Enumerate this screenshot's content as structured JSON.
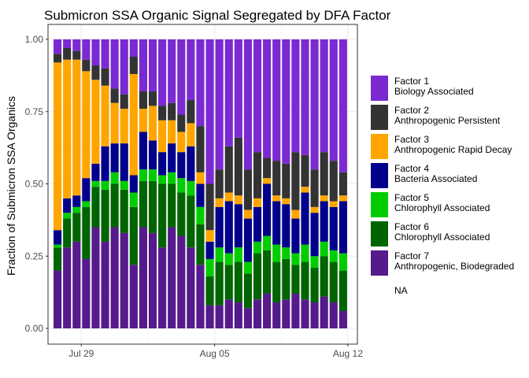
{
  "chart_data": {
    "type": "bar",
    "stacked": true,
    "title": "Submicron SSA Organic Signal Segregated by DFA Factor",
    "xlabel": "",
    "ylabel": "Fraction of Submicron SSA Organics",
    "ylim": [
      0,
      1.05
    ],
    "yticks": [
      0.0,
      0.25,
      0.5,
      0.75,
      1.0
    ],
    "ytick_labels": [
      "0.00",
      "0.25",
      "0.50",
      "0.75",
      "1.00"
    ],
    "xlim_days": [
      -0.75,
      15.5
    ],
    "xticks": [
      {
        "label": "Jul 29",
        "day": 1
      },
      {
        "label": "Aug 05",
        "day": 8
      },
      {
        "label": "Aug 12",
        "day": 15
      }
    ],
    "bar_width_days": 0.42,
    "series": [
      {
        "name": "Factor 1",
        "label_line1": "Factor 1",
        "label_line2": "Biology Associated",
        "color": "#7B2AD2"
      },
      {
        "name": "Factor 2",
        "label_line1": "Factor 2",
        "label_line2": "Anthropogenic Persistent",
        "color": "#333333"
      },
      {
        "name": "Factor 3",
        "label_line1": "Factor 3",
        "label_line2": "Anthropogenic Rapid Decay",
        "color": "#FFA500"
      },
      {
        "name": "Factor 4",
        "label_line1": "Factor 4",
        "label_line2": "Bacteria Associated",
        "color": "#00008B"
      },
      {
        "name": "Factor 5",
        "label_line1": "Factor 5",
        "label_line2": "Chlorophyll Associated",
        "color": "#00CD00"
      },
      {
        "name": "Factor 6",
        "label_line1": "Factor 6",
        "label_line2": "Chlorophyll Associated",
        "color": "#006400"
      },
      {
        "name": "Factor 7",
        "label_line1": "Factor 7",
        "label_line2": "Anthropogenic, Biodegraded",
        "color": "#551A8B"
      }
    ],
    "na_label": "NA",
    "bars": [
      {
        "day": -0.25,
        "f7": 0.2,
        "f6": 0.08,
        "f5": 0.01,
        "f4": 0.05,
        "f3": 0.58,
        "f2": 0.03,
        "f1": 0.05
      },
      {
        "day": 0.25,
        "f7": 0.28,
        "f6": 0.1,
        "f5": 0.02,
        "f4": 0.05,
        "f3": 0.48,
        "f2": 0.04,
        "f1": 0.03
      },
      {
        "day": 0.75,
        "f7": 0.3,
        "f6": 0.1,
        "f5": 0.02,
        "f4": 0.04,
        "f3": 0.47,
        "f2": 0.03,
        "f1": 0.04
      },
      {
        "day": 1.25,
        "f7": 0.24,
        "f6": 0.18,
        "f5": 0.02,
        "f4": 0.08,
        "f3": 0.37,
        "f2": 0.04,
        "f1": 0.07
      },
      {
        "day": 1.75,
        "f7": 0.35,
        "f6": 0.14,
        "f5": 0.02,
        "f4": 0.06,
        "f3": 0.29,
        "f2": 0.05,
        "f1": 0.09
      },
      {
        "day": 2.25,
        "f7": 0.3,
        "f6": 0.18,
        "f5": 0.03,
        "f4": 0.12,
        "f3": 0.21,
        "f2": 0.06,
        "f1": 0.1
      },
      {
        "day": 2.75,
        "f7": 0.35,
        "f6": 0.15,
        "f5": 0.04,
        "f4": 0.1,
        "f3": 0.14,
        "f2": 0.05,
        "f1": 0.17
      },
      {
        "day": 3.25,
        "f7": 0.33,
        "f6": 0.15,
        "f5": 0.03,
        "f4": 0.13,
        "f3": 0.12,
        "f2": 0.05,
        "f1": 0.19
      },
      {
        "day": 3.75,
        "f7": 0.22,
        "f6": 0.2,
        "f5": 0.05,
        "f4": 0.06,
        "f3": 0.35,
        "f2": 0.06,
        "f1": 0.06
      },
      {
        "day": 4.25,
        "f7": 0.35,
        "f6": 0.16,
        "f5": 0.04,
        "f4": 0.13,
        "f3": 0.08,
        "f2": 0.06,
        "f1": 0.18
      },
      {
        "day": 4.75,
        "f7": 0.33,
        "f6": 0.18,
        "f5": 0.04,
        "f4": 0.1,
        "f3": 0.12,
        "f2": 0.05,
        "f1": 0.18
      },
      {
        "day": 5.25,
        "f7": 0.28,
        "f6": 0.22,
        "f5": 0.03,
        "f4": 0.08,
        "f3": 0.11,
        "f2": 0.05,
        "f1": 0.23
      },
      {
        "day": 5.75,
        "f7": 0.35,
        "f6": 0.15,
        "f5": 0.04,
        "f4": 0.1,
        "f3": 0.08,
        "f2": 0.06,
        "f1": 0.22
      },
      {
        "day": 6.25,
        "f7": 0.32,
        "f6": 0.15,
        "f5": 0.05,
        "f4": 0.09,
        "f3": 0.07,
        "f2": 0.06,
        "f1": 0.26
      },
      {
        "day": 6.75,
        "f7": 0.28,
        "f6": 0.18,
        "f5": 0.05,
        "f4": 0.12,
        "f3": 0.08,
        "f2": 0.08,
        "f1": 0.21
      },
      {
        "day": 7.25,
        "f7": 0.22,
        "f6": 0.14,
        "f5": 0.06,
        "f4": 0.08,
        "f3": 0.04,
        "f2": 0.16,
        "f1": 0.3
      },
      {
        "day": 7.75,
        "f7": 0.08,
        "f6": 0.1,
        "f5": 0.06,
        "f4": 0.06,
        "f3": 0.04,
        "f2": 0.16,
        "f1": 0.5
      },
      {
        "day": 8.25,
        "f7": 0.08,
        "f6": 0.15,
        "f5": 0.05,
        "f4": 0.14,
        "f3": 0.03,
        "f2": 0.1,
        "f1": 0.45
      },
      {
        "day": 8.75,
        "f7": 0.1,
        "f6": 0.12,
        "f5": 0.04,
        "f4": 0.18,
        "f3": 0.03,
        "f2": 0.16,
        "f1": 0.37
      },
      {
        "day": 9.25,
        "f7": 0.09,
        "f6": 0.14,
        "f5": 0.05,
        "f4": 0.15,
        "f3": 0.03,
        "f2": 0.2,
        "f1": 0.34
      },
      {
        "day": 9.75,
        "f7": 0.07,
        "f6": 0.12,
        "f5": 0.04,
        "f4": 0.15,
        "f3": 0.03,
        "f2": 0.14,
        "f1": 0.45
      },
      {
        "day": 10.25,
        "f7": 0.1,
        "f6": 0.16,
        "f5": 0.04,
        "f4": 0.12,
        "f3": 0.03,
        "f2": 0.16,
        "f1": 0.39
      },
      {
        "day": 10.75,
        "f7": 0.12,
        "f6": 0.15,
        "f5": 0.05,
        "f4": 0.18,
        "f3": 0.02,
        "f2": 0.07,
        "f1": 0.41
      },
      {
        "day": 11.25,
        "f7": 0.09,
        "f6": 0.14,
        "f5": 0.06,
        "f4": 0.15,
        "f3": 0.02,
        "f2": 0.12,
        "f1": 0.42
      },
      {
        "day": 11.75,
        "f7": 0.1,
        "f6": 0.14,
        "f5": 0.04,
        "f4": 0.15,
        "f3": 0.02,
        "f2": 0.12,
        "f1": 0.43
      },
      {
        "day": 12.25,
        "f7": 0.12,
        "f6": 0.1,
        "f5": 0.04,
        "f4": 0.12,
        "f3": 0.03,
        "f2": 0.2,
        "f1": 0.39
      },
      {
        "day": 12.75,
        "f7": 0.1,
        "f6": 0.13,
        "f5": 0.06,
        "f4": 0.18,
        "f3": 0.02,
        "f2": 0.11,
        "f1": 0.4
      },
      {
        "day": 13.25,
        "f7": 0.09,
        "f6": 0.12,
        "f5": 0.04,
        "f4": 0.15,
        "f3": 0.02,
        "f2": 0.13,
        "f1": 0.45
      },
      {
        "day": 13.75,
        "f7": 0.11,
        "f6": 0.14,
        "f5": 0.05,
        "f4": 0.14,
        "f3": 0.02,
        "f2": 0.15,
        "f1": 0.39
      },
      {
        "day": 14.25,
        "f7": 0.09,
        "f6": 0.14,
        "f5": 0.04,
        "f4": 0.15,
        "f3": 0.02,
        "f2": 0.14,
        "f1": 0.42
      },
      {
        "day": 14.75,
        "f7": 0.06,
        "f6": 0.14,
        "f5": 0.06,
        "f4": 0.18,
        "f3": 0.02,
        "f2": 0.08,
        "f1": 0.46
      }
    ]
  }
}
